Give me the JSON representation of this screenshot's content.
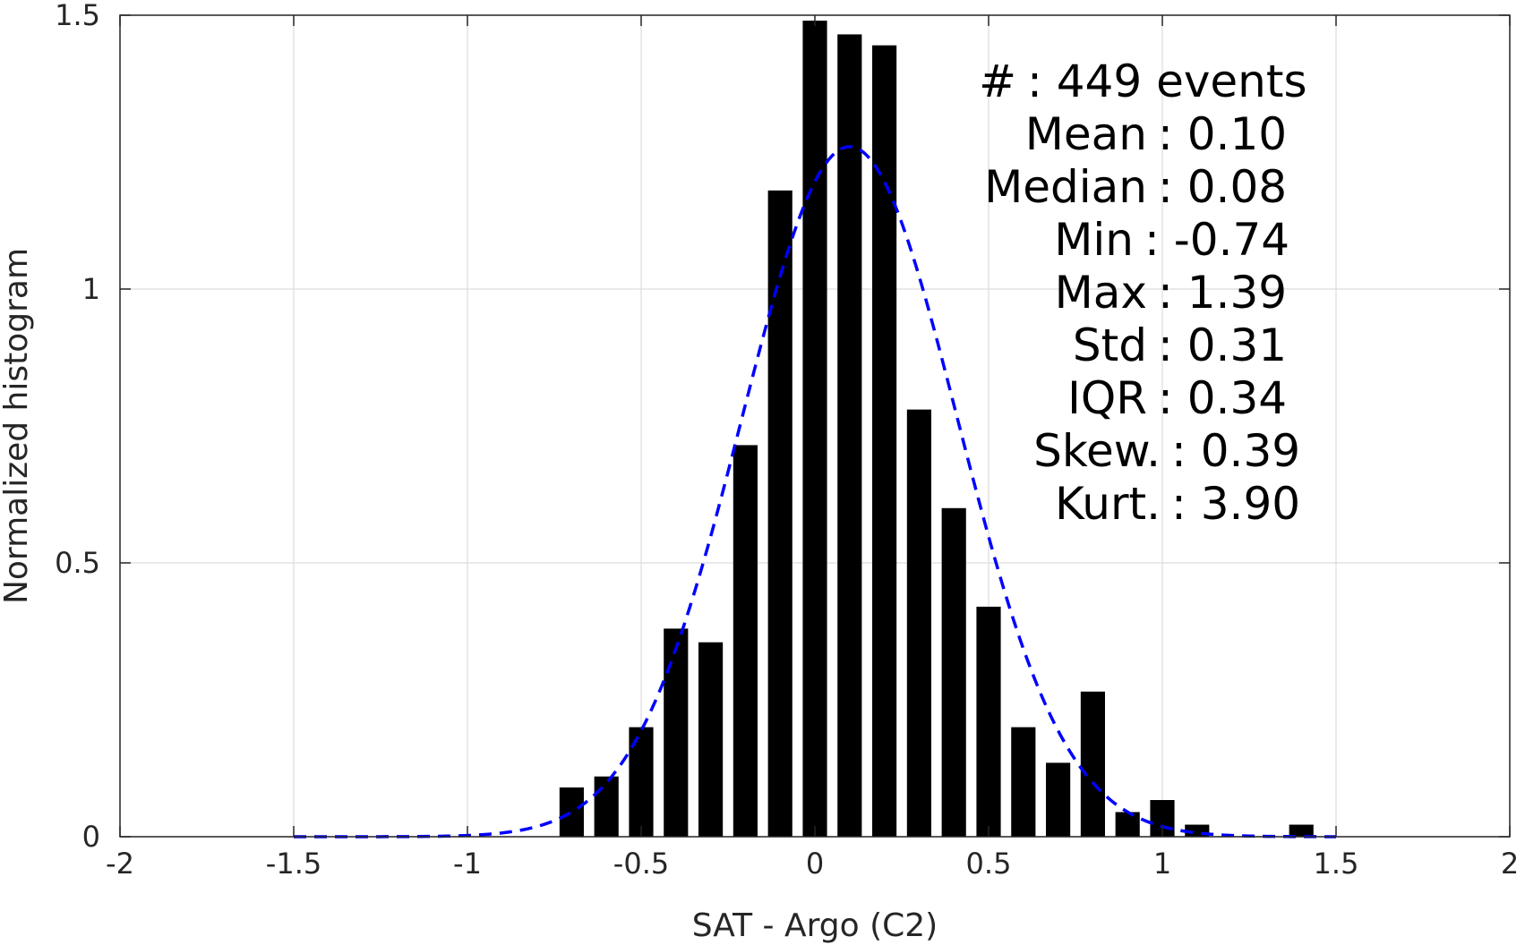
{
  "chart_data": {
    "type": "bar",
    "title": "",
    "xlabel": "SAT - Argo (C2)",
    "ylabel": "Normalized histogram",
    "xlim": [
      -2,
      2
    ],
    "ylim": [
      0,
      1.5
    ],
    "grid": true,
    "x_ticks": [
      -2,
      -1.5,
      -1,
      -0.5,
      0,
      0.5,
      1,
      1.5,
      2
    ],
    "x_tick_labels": [
      "-2",
      "-1.5",
      "-1",
      "-0.5",
      "0",
      "0.5",
      "1",
      "1.5",
      "2"
    ],
    "y_ticks": [
      0,
      0.5,
      1,
      1.5
    ],
    "y_tick_labels": [
      "0",
      "0.5",
      "1",
      "1.5"
    ],
    "bar_color": "#000000",
    "bar_width": 0.07,
    "bars": [
      {
        "x": -0.7,
        "value": 0.09
      },
      {
        "x": -0.6,
        "value": 0.11
      },
      {
        "x": -0.5,
        "value": 0.2
      },
      {
        "x": -0.4,
        "value": 0.38
      },
      {
        "x": -0.3,
        "value": 0.355
      },
      {
        "x": -0.2,
        "value": 0.715
      },
      {
        "x": -0.1,
        "value": 1.18
      },
      {
        "x": 0.0,
        "value": 1.49
      },
      {
        "x": 0.1,
        "value": 1.465
      },
      {
        "x": 0.2,
        "value": 1.445
      },
      {
        "x": 0.3,
        "value": 0.78
      },
      {
        "x": 0.4,
        "value": 0.6
      },
      {
        "x": 0.5,
        "value": 0.42
      },
      {
        "x": 0.6,
        "value": 0.2
      },
      {
        "x": 0.7,
        "value": 0.135
      },
      {
        "x": 0.8,
        "value": 0.265
      },
      {
        "x": 0.9,
        "value": 0.045
      },
      {
        "x": 1.0,
        "value": 0.067
      },
      {
        "x": 1.1,
        "value": 0.022
      },
      {
        "x": 1.4,
        "value": 0.022
      }
    ],
    "fit_curve": {
      "style": "dashed",
      "color": "#0000ff",
      "x_range": [
        -1.5,
        1.5
      ],
      "mean": 0.1,
      "std": 0.31,
      "peak": 1.26
    },
    "annotation": {
      "lines": [
        {
          "label": "#",
          "value": ": 449 events"
        },
        {
          "label": "Mean",
          "value": ": 0.10"
        },
        {
          "label": "Median",
          "value": ": 0.08"
        },
        {
          "label": "Min",
          "value": ": -0.74"
        },
        {
          "label": "Max",
          "value": ": 1.39"
        },
        {
          "label": "Std",
          "value": ": 0.31"
        },
        {
          "label": "IQR",
          "value": ": 0.34"
        },
        {
          "label": "Skew.",
          "value": ": 0.39"
        },
        {
          "label": "Kurt.",
          "value": ": 3.90"
        }
      ]
    }
  }
}
